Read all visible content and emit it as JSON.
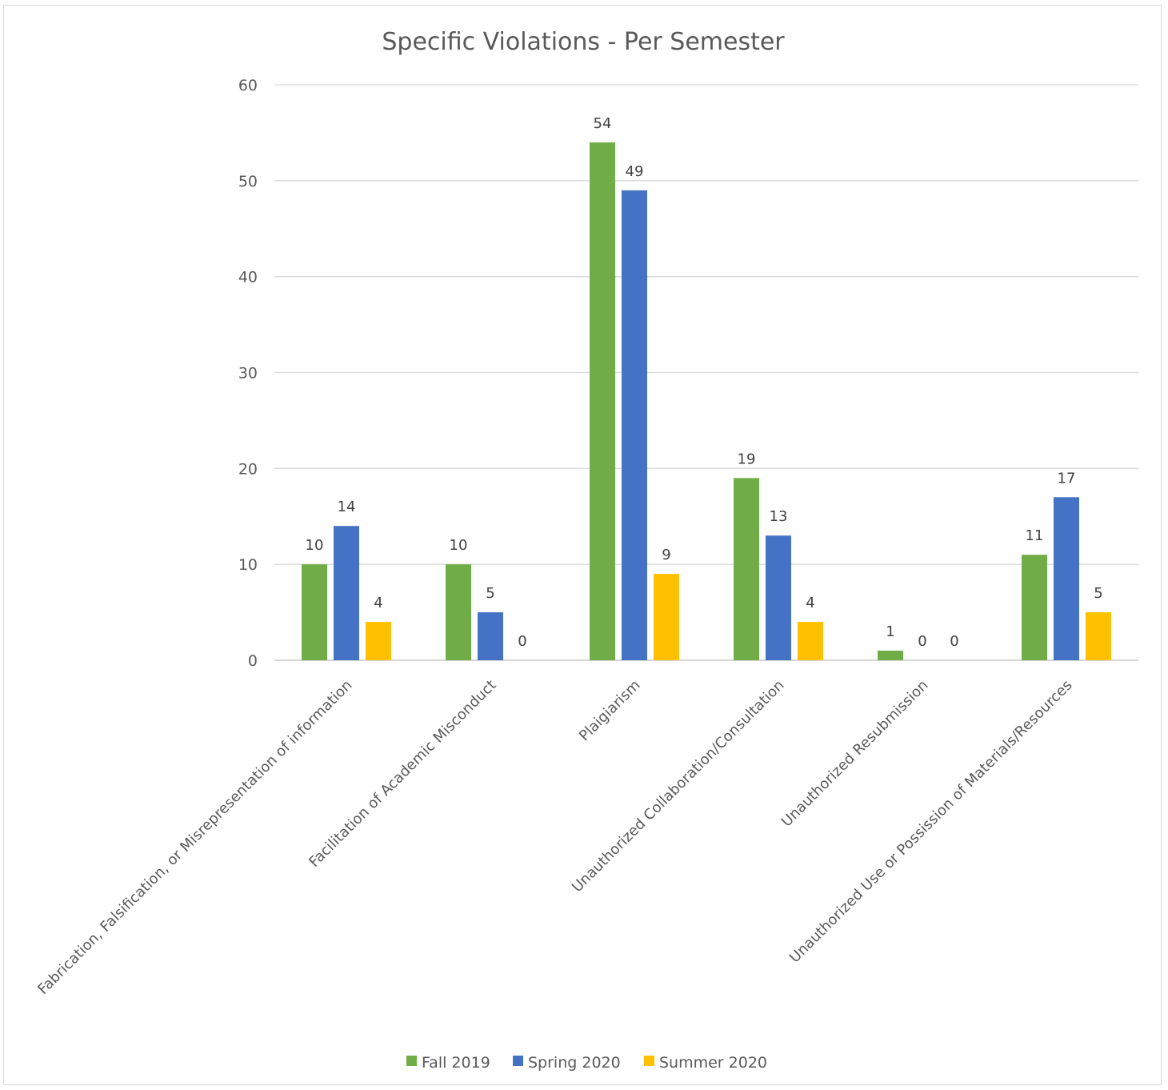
{
  "chart_data": {
    "type": "bar",
    "title": "Specific Violations - Per Semester",
    "xlabel": "",
    "ylabel": "",
    "ylim": [
      0,
      60
    ],
    "yticks": [
      0,
      10,
      20,
      30,
      40,
      50,
      60
    ],
    "grid": true,
    "legend_position": "bottom",
    "categories": [
      "Fabrication, Falsification, or Misrepresentation of information",
      "Facilitation of Academic Misconduct",
      "Plaigiarism",
      "Unauthorized Collaboration/Consultation",
      "Unauthorized Resubmission",
      "Unauthorized Use or Possission of Materials/Resources"
    ],
    "series": [
      {
        "name": "Fall 2019",
        "color": "#70ad47",
        "values": [
          10,
          10,
          54,
          19,
          1,
          11
        ]
      },
      {
        "name": "Spring 2020",
        "color": "#4472c4",
        "values": [
          14,
          5,
          49,
          13,
          0,
          17
        ]
      },
      {
        "name": "Summer 2020",
        "color": "#ffc000",
        "values": [
          4,
          0,
          9,
          4,
          0,
          5
        ]
      }
    ]
  }
}
